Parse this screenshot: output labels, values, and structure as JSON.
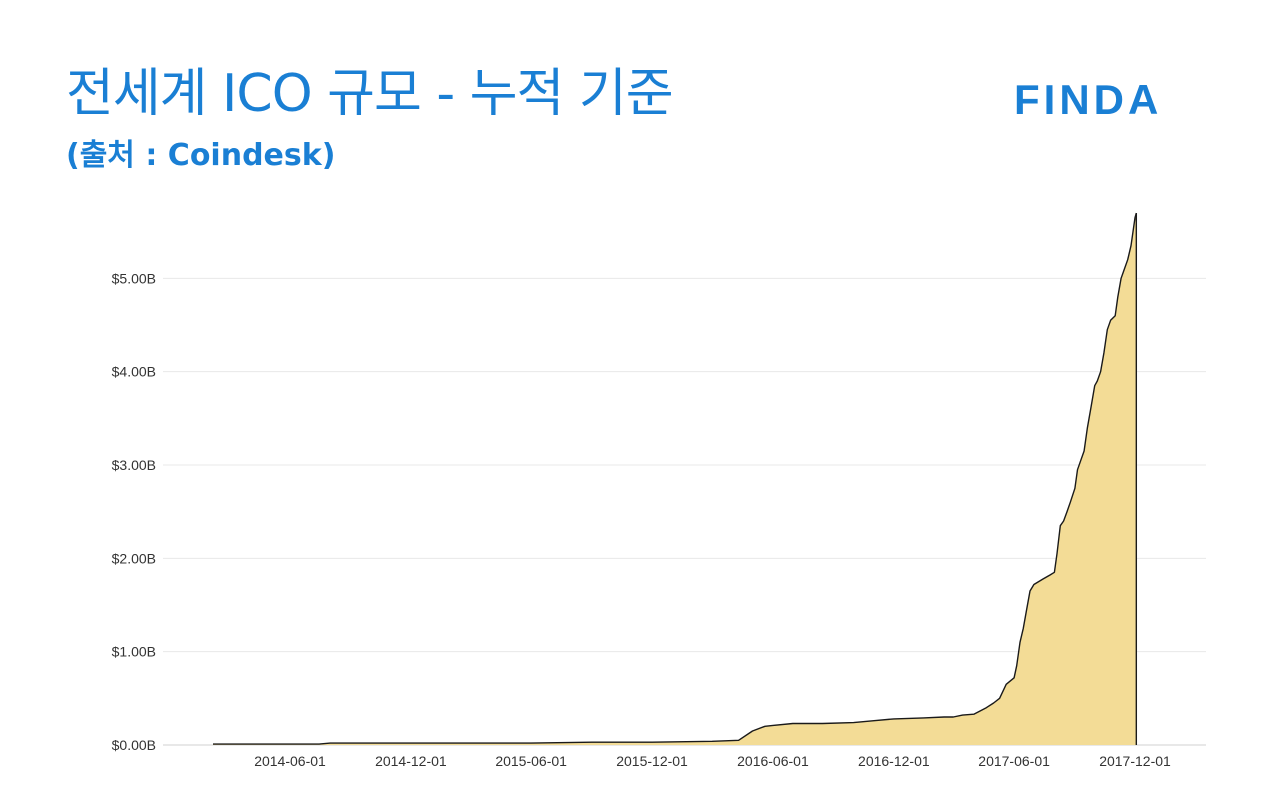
{
  "header": {
    "title": "전세계 ICO 규모 - 누적 기준",
    "subtitle": "(출처 : Coindesk)",
    "logo_text": "FINDA"
  },
  "colors": {
    "accent": "#1a7fd4",
    "area_fill": "#f3dc96",
    "line": "#1a1a1a",
    "grid": "#e8e8e8"
  },
  "chart_data": {
    "type": "area",
    "title": "전세계 ICO 규모 - 누적 기준",
    "subtitle": "(출처 : Coindesk)",
    "xlabel": "",
    "ylabel": "",
    "grid": true,
    "legend": "none",
    "x_tick_labels": [
      "2014-06-01",
      "2014-12-01",
      "2015-06-01",
      "2015-12-01",
      "2016-06-01",
      "2016-12-01",
      "2017-06-01",
      "2017-12-01"
    ],
    "y_tick_labels": [
      "$0.00B",
      "$1.00B",
      "$2.00B",
      "$3.00B",
      "$4.00B",
      "$5.00B"
    ],
    "y_ticks": [
      0,
      1,
      2,
      3,
      4,
      5
    ],
    "xlim": [
      "2014-01-01",
      "2018-01-01"
    ],
    "ylim": [
      0,
      6
    ],
    "units": "billion USD",
    "series": [
      {
        "x": [
          "2014-01-01",
          "2014-04-01",
          "2014-07-15",
          "2014-08-01",
          "2014-12-01",
          "2015-03-01",
          "2015-06-01",
          "2015-09-01",
          "2015-12-01",
          "2016-03-01",
          "2016-04-10",
          "2016-05-01",
          "2016-05-20",
          "2016-06-01",
          "2016-07-01",
          "2016-08-15",
          "2016-10-01",
          "2016-11-01",
          "2016-12-01",
          "2017-01-15",
          "2017-02-15",
          "2017-03-01",
          "2017-03-15",
          "2017-04-01",
          "2017-04-20",
          "2017-05-01",
          "2017-05-10",
          "2017-05-20",
          "2017-06-01",
          "2017-06-05",
          "2017-06-10",
          "2017-06-15",
          "2017-06-20",
          "2017-06-25",
          "2017-07-01",
          "2017-07-15",
          "2017-07-25",
          "2017-08-01",
          "2017-08-05",
          "2017-08-10",
          "2017-08-15",
          "2017-08-20",
          "2017-08-25",
          "2017-09-01",
          "2017-09-05",
          "2017-09-10",
          "2017-09-15",
          "2017-09-20",
          "2017-09-25",
          "2017-10-01",
          "2017-10-05",
          "2017-10-10",
          "2017-10-15",
          "2017-10-20",
          "2017-10-25",
          "2017-11-01",
          "2017-11-05",
          "2017-11-10",
          "2017-11-15",
          "2017-11-20",
          "2017-11-25",
          "2017-11-28",
          "2017-12-01",
          "2017-12-03"
        ],
        "values": [
          0.01,
          0.01,
          0.01,
          0.02,
          0.02,
          0.02,
          0.02,
          0.03,
          0.03,
          0.04,
          0.05,
          0.15,
          0.2,
          0.21,
          0.23,
          0.23,
          0.24,
          0.26,
          0.28,
          0.29,
          0.3,
          0.3,
          0.32,
          0.33,
          0.4,
          0.45,
          0.5,
          0.65,
          0.72,
          0.85,
          1.1,
          1.25,
          1.45,
          1.65,
          1.72,
          1.78,
          1.82,
          1.85,
          2.05,
          2.35,
          2.4,
          2.5,
          2.6,
          2.75,
          2.95,
          3.05,
          3.15,
          3.4,
          3.6,
          3.85,
          3.9,
          4.0,
          4.2,
          4.45,
          4.55,
          4.6,
          4.8,
          5.0,
          5.1,
          5.2,
          5.35,
          5.5,
          5.65,
          5.7
        ]
      }
    ]
  }
}
